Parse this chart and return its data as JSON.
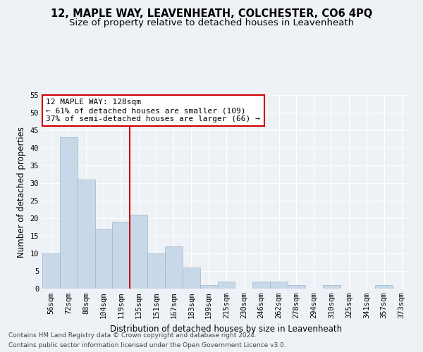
{
  "title": "12, MAPLE WAY, LEAVENHEATH, COLCHESTER, CO6 4PQ",
  "subtitle": "Size of property relative to detached houses in Leavenheath",
  "xlabel": "Distribution of detached houses by size in Leavenheath",
  "ylabel": "Number of detached properties",
  "categories": [
    "56sqm",
    "72sqm",
    "88sqm",
    "104sqm",
    "119sqm",
    "135sqm",
    "151sqm",
    "167sqm",
    "183sqm",
    "199sqm",
    "215sqm",
    "230sqm",
    "246sqm",
    "262sqm",
    "278sqm",
    "294sqm",
    "310sqm",
    "325sqm",
    "341sqm",
    "357sqm",
    "373sqm"
  ],
  "values": [
    10,
    43,
    31,
    17,
    19,
    21,
    10,
    12,
    6,
    1,
    2,
    0,
    2,
    2,
    1,
    0,
    1,
    0,
    0,
    1,
    0
  ],
  "bar_color": "#c8d8e8",
  "bar_edge_color": "#9ab8cc",
  "background_color": "#eef2f7",
  "grid_color": "#ffffff",
  "annotation_text_line1": "12 MAPLE WAY: 128sqm",
  "annotation_text_line2": "← 61% of detached houses are smaller (109)",
  "annotation_text_line3": "37% of semi-detached houses are larger (66) →",
  "annotation_box_color": "#ffffff",
  "annotation_box_edge_color": "#cc0000",
  "vline_color": "#cc0000",
  "ylim": [
    0,
    55
  ],
  "yticks": [
    0,
    5,
    10,
    15,
    20,
    25,
    30,
    35,
    40,
    45,
    50,
    55
  ],
  "title_fontsize": 10.5,
  "subtitle_fontsize": 9.5,
  "axis_label_fontsize": 8.5,
  "tick_fontsize": 7.5,
  "annotation_fontsize": 8,
  "footnote_fontsize": 6.5
}
